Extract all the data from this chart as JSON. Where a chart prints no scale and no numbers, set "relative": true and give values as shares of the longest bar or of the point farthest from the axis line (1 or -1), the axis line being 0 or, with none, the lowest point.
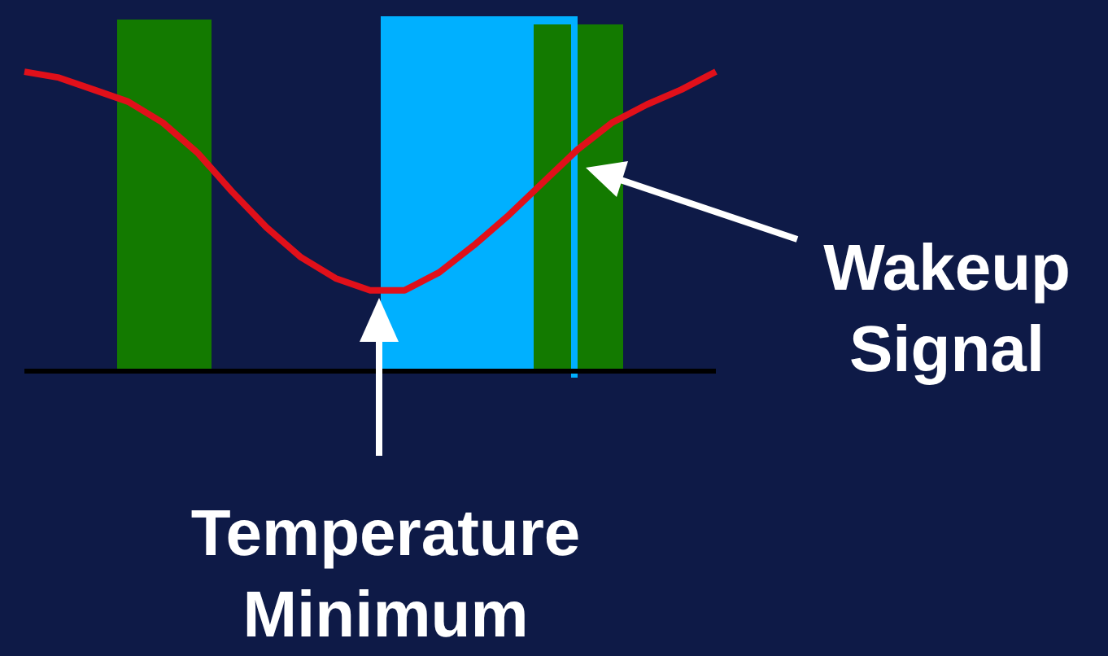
{
  "chart_data": {
    "type": "line",
    "relative": true,
    "categories": [
      null,
      null,
      null,
      null,
      null,
      null,
      null,
      null,
      null,
      null,
      null,
      null,
      null,
      null,
      null,
      null,
      null,
      null,
      null,
      null,
      null
    ],
    "series": [
      {
        "color": "#e0101a",
        "values": [
          1,
          0.98,
          0.94,
          0.9,
          0.83,
          0.73,
          0.6,
          0.48,
          0.38,
          0.31,
          0.27,
          0.27,
          0.33,
          0.42,
          0.52,
          0.63,
          0.74,
          0.83,
          0.89,
          0.94,
          1
        ]
      }
    ],
    "annotations": [
      "Temperature Minimum",
      "Wakeup Signal"
    ]
  }
}
